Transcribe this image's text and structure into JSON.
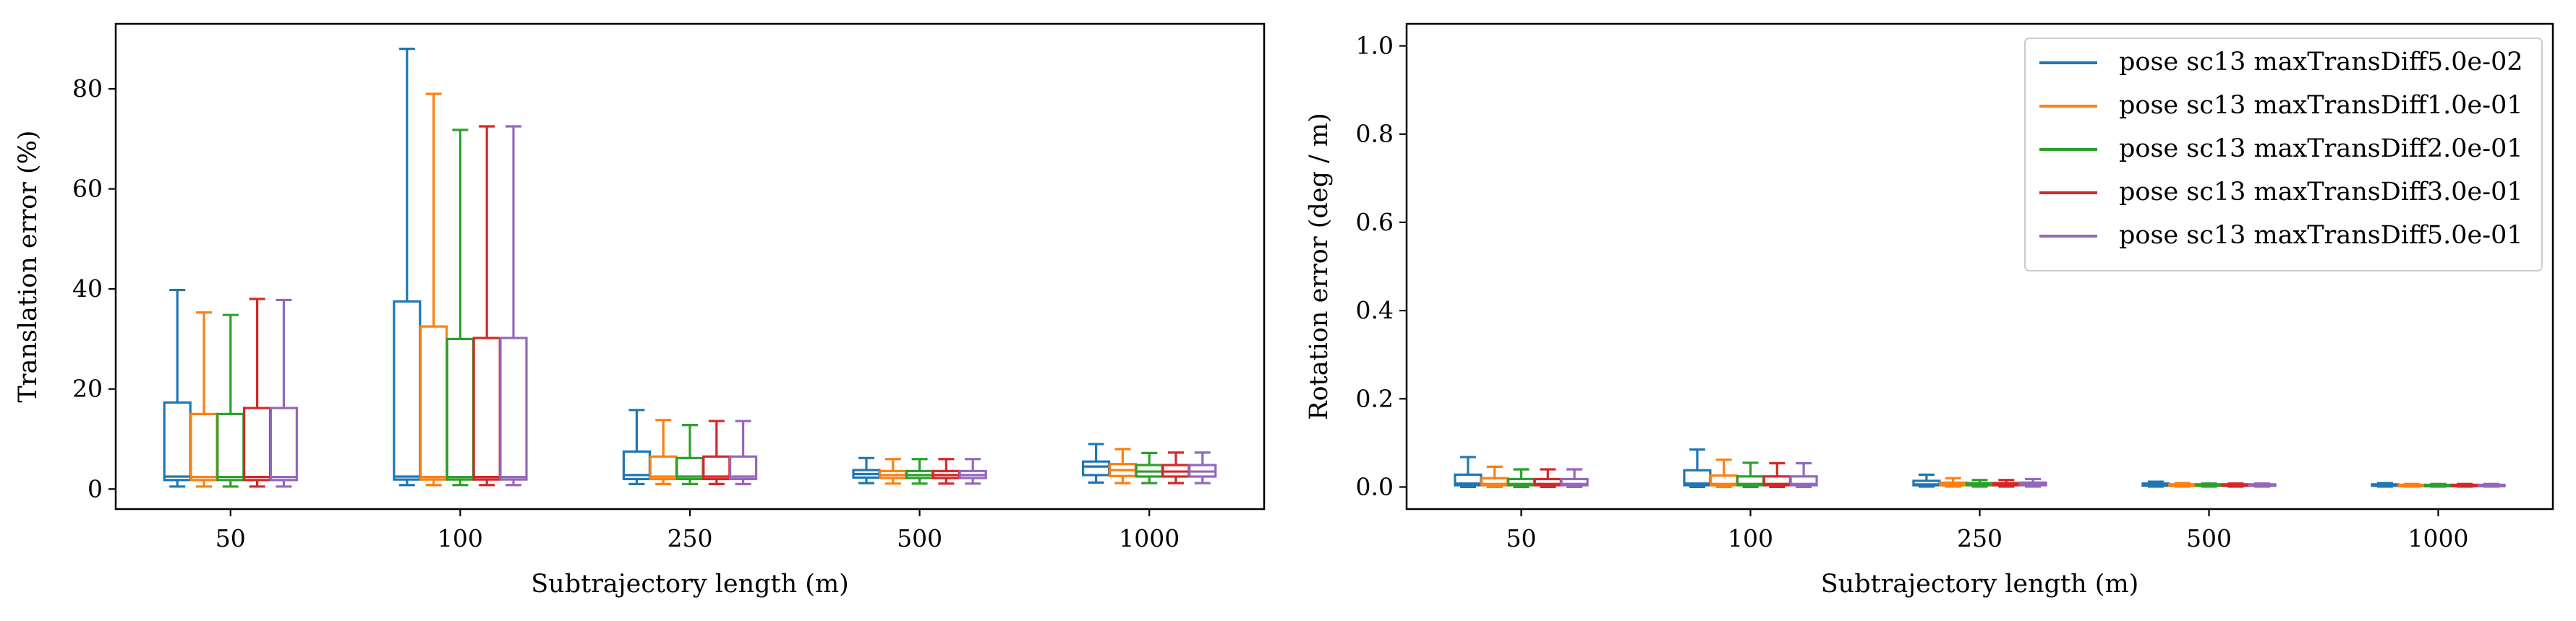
{
  "chart_data": [
    {
      "type": "box",
      "xlabel": "Subtrajectory length (m)",
      "ylabel": "Translation error (%)",
      "ylim": [
        -4,
        93
      ],
      "yticks": [
        0,
        20,
        40,
        60,
        80
      ],
      "categories": [
        "50",
        "100",
        "250",
        "500",
        "1000"
      ],
      "series": [
        {
          "name": "pose sc13 maxTransDiff5.0e-02",
          "color": "#1f77b4",
          "boxes": [
            [
              0.5,
              1.8,
              2.5,
              17.3,
              39.8
            ],
            [
              0.8,
              1.9,
              2.5,
              37.5,
              88.0
            ],
            [
              1.0,
              2.0,
              2.8,
              7.5,
              15.8
            ],
            [
              1.2,
              2.3,
              3.0,
              3.8,
              6.2
            ],
            [
              1.3,
              2.8,
              4.5,
              5.5,
              9.0
            ]
          ]
        },
        {
          "name": "pose sc13 maxTransDiff1.0e-01",
          "color": "#ff7f0e",
          "boxes": [
            [
              0.5,
              1.8,
              2.4,
              15.0,
              35.3
            ],
            [
              0.8,
              1.9,
              2.4,
              32.5,
              79.0
            ],
            [
              1.0,
              2.0,
              2.5,
              6.5,
              13.8
            ],
            [
              1.1,
              2.2,
              2.8,
              3.6,
              6.0
            ],
            [
              1.2,
              2.6,
              3.8,
              5.0,
              8.0
            ]
          ]
        },
        {
          "name": "pose sc13 maxTransDiff2.0e-01",
          "color": "#2ca02c",
          "boxes": [
            [
              0.5,
              1.8,
              2.4,
              15.0,
              34.8
            ],
            [
              0.8,
              1.9,
              2.4,
              30.0,
              71.8
            ],
            [
              1.0,
              2.0,
              2.5,
              6.2,
              12.8
            ],
            [
              1.1,
              2.2,
              2.8,
              3.6,
              6.0
            ],
            [
              1.2,
              2.5,
              3.5,
              4.8,
              7.2
            ]
          ]
        },
        {
          "name": "pose sc13 maxTransDiff3.0e-01",
          "color": "#d62728",
          "boxes": [
            [
              0.5,
              1.8,
              2.4,
              16.2,
              38.0
            ],
            [
              0.8,
              1.9,
              2.4,
              30.2,
              72.5
            ],
            [
              1.0,
              2.0,
              2.5,
              6.5,
              13.6
            ],
            [
              1.1,
              2.2,
              2.8,
              3.6,
              6.0
            ],
            [
              1.2,
              2.5,
              3.5,
              4.8,
              7.3
            ]
          ]
        },
        {
          "name": "pose sc13 maxTransDiff5.0e-01",
          "color": "#9467bd",
          "boxes": [
            [
              0.5,
              1.8,
              2.4,
              16.2,
              37.8
            ],
            [
              0.8,
              1.9,
              2.4,
              30.2,
              72.5
            ],
            [
              1.0,
              2.0,
              2.5,
              6.5,
              13.6
            ],
            [
              1.1,
              2.2,
              2.8,
              3.6,
              6.0
            ],
            [
              1.2,
              2.5,
              3.5,
              4.8,
              7.3
            ]
          ]
        }
      ]
    },
    {
      "type": "box",
      "xlabel": "Subtrajectory length (m)",
      "ylabel": "Rotation error (deg / m)",
      "ylim": [
        -0.05,
        1.05
      ],
      "yticks": [
        0.0,
        0.2,
        0.4,
        0.6,
        0.8,
        1.0
      ],
      "categories": [
        "50",
        "100",
        "250",
        "500",
        "1000"
      ],
      "legend": {
        "placement": "top-right",
        "entries": [
          {
            "label": "pose sc13 maxTransDiff5.0e-02",
            "color": "#1f77b4"
          },
          {
            "label": "pose sc13 maxTransDiff1.0e-01",
            "color": "#ff7f0e"
          },
          {
            "label": "pose sc13 maxTransDiff2.0e-01",
            "color": "#2ca02c"
          },
          {
            "label": "pose sc13 maxTransDiff3.0e-01",
            "color": "#d62728"
          },
          {
            "label": "pose sc13 maxTransDiff5.0e-01",
            "color": "#9467bd"
          }
        ]
      },
      "series": [
        {
          "name": "pose sc13 maxTransDiff5.0e-02",
          "color": "#1f77b4",
          "boxes": [
            [
              0.0,
              0.004,
              0.008,
              0.028,
              0.068
            ],
            [
              0.0,
              0.004,
              0.008,
              0.038,
              0.085
            ],
            [
              0.001,
              0.004,
              0.006,
              0.014,
              0.028
            ],
            [
              0.001,
              0.003,
              0.005,
              0.008,
              0.012
            ],
            [
              0.001,
              0.003,
              0.004,
              0.006,
              0.009
            ]
          ]
        },
        {
          "name": "pose sc13 maxTransDiff1.0e-01",
          "color": "#ff7f0e",
          "boxes": [
            [
              0.0,
              0.004,
              0.007,
              0.02,
              0.046
            ],
            [
              0.0,
              0.004,
              0.007,
              0.026,
              0.062
            ],
            [
              0.001,
              0.004,
              0.006,
              0.01,
              0.02
            ],
            [
              0.001,
              0.003,
              0.004,
              0.006,
              0.009
            ],
            [
              0.001,
              0.003,
              0.004,
              0.005,
              0.007
            ]
          ]
        },
        {
          "name": "pose sc13 maxTransDiff2.0e-01",
          "color": "#2ca02c",
          "boxes": [
            [
              0.0,
              0.004,
              0.007,
              0.018,
              0.04
            ],
            [
              0.0,
              0.004,
              0.007,
              0.024,
              0.055
            ],
            [
              0.001,
              0.004,
              0.006,
              0.009,
              0.016
            ],
            [
              0.001,
              0.003,
              0.004,
              0.006,
              0.008
            ],
            [
              0.001,
              0.003,
              0.004,
              0.005,
              0.007
            ]
          ]
        },
        {
          "name": "pose sc13 maxTransDiff3.0e-01",
          "color": "#d62728",
          "boxes": [
            [
              0.0,
              0.004,
              0.007,
              0.018,
              0.04
            ],
            [
              0.0,
              0.004,
              0.007,
              0.024,
              0.054
            ],
            [
              0.001,
              0.004,
              0.006,
              0.009,
              0.016
            ],
            [
              0.001,
              0.003,
              0.004,
              0.006,
              0.008
            ],
            [
              0.001,
              0.003,
              0.004,
              0.005,
              0.007
            ]
          ]
        },
        {
          "name": "pose sc13 maxTransDiff5.0e-01",
          "color": "#9467bd",
          "boxes": [
            [
              0.0,
              0.004,
              0.007,
              0.018,
              0.04
            ],
            [
              0.0,
              0.004,
              0.007,
              0.024,
              0.054
            ],
            [
              0.001,
              0.004,
              0.006,
              0.01,
              0.018
            ],
            [
              0.001,
              0.003,
              0.004,
              0.006,
              0.008
            ],
            [
              0.001,
              0.003,
              0.004,
              0.005,
              0.007
            ]
          ]
        }
      ]
    }
  ]
}
